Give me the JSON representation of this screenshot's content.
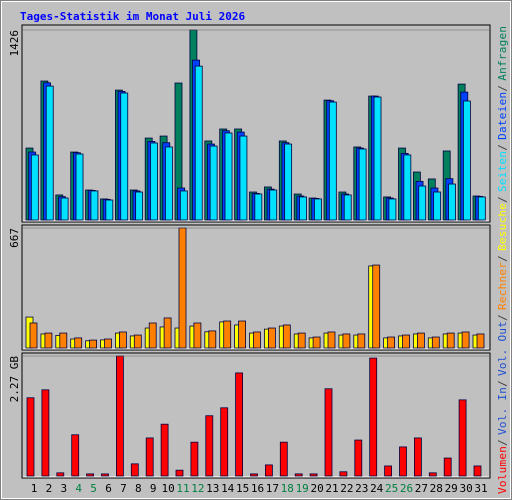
{
  "legend_separator": "/",
  "chart_data": [
    {
      "type": "bar",
      "title": "Tages-Statistik im Monat Juli 2026",
      "ylim": [
        0,
        1426
      ],
      "yticks": [
        1426
      ],
      "series": [
        {
          "name": "Anfragen",
          "color": "#00805c",
          "values": [
            540,
            1043,
            188,
            510,
            225,
            158,
            975,
            225,
            615,
            630,
            1028,
            1426,
            593,
            683,
            683,
            210,
            248,
            593,
            195,
            165,
            900,
            210,
            548,
            930,
            173,
            540,
            360,
            308,
            518,
            1020,
            180
          ]
        },
        {
          "name": "Dateien",
          "color": "#0040ff",
          "values": [
            510,
            1030,
            175,
            505,
            222,
            155,
            965,
            218,
            590,
            580,
            240,
            1200,
            570,
            670,
            660,
            200,
            232,
            580,
            180,
            162,
            895,
            195,
            540,
            930,
            165,
            500,
            290,
            240,
            310,
            960,
            177
          ]
        },
        {
          "name": "Seiten",
          "color": "#00e0ff",
          "values": [
            488,
            1005,
            165,
            495,
            218,
            150,
            953,
            210,
            578,
            548,
            218,
            1155,
            555,
            653,
            630,
            195,
            225,
            570,
            173,
            158,
            885,
            188,
            533,
            923,
            158,
            488,
            255,
            210,
            270,
            893,
            173
          ]
        }
      ]
    },
    {
      "type": "bar",
      "ylim": [
        0,
        667
      ],
      "yticks": [
        667
      ],
      "series": [
        {
          "name": "Besuche",
          "color": "#ffff00",
          "values": [
            172,
            78,
            70,
            50,
            40,
            45,
            83,
            67,
            111,
            117,
            111,
            122,
            90,
            145,
            128,
            83,
            105,
            122,
            78,
            56,
            83,
            72,
            72,
            456,
            56,
            67,
            78,
            56,
            78,
            83,
            72
          ]
        },
        {
          "name": "Rechner",
          "color": "#ff8000",
          "values": [
            139,
            83,
            83,
            56,
            44,
            50,
            89,
            72,
            139,
            167,
            667,
            139,
            95,
            150,
            150,
            89,
            111,
            128,
            83,
            61,
            89,
            78,
            78,
            461,
            61,
            72,
            83,
            61,
            83,
            89,
            78
          ]
        }
      ]
    },
    {
      "type": "bar",
      "ylim": [
        0,
        2.27
      ],
      "yticks": [
        {
          "value": 2.27,
          "label": "2.27 GB"
        }
      ],
      "categories": [
        "1",
        "2",
        "3",
        "4",
        "5",
        "6",
        "7",
        "8",
        "9",
        "10",
        "11",
        "12",
        "13",
        "14",
        "15",
        "16",
        "17",
        "18",
        "19",
        "20",
        "21",
        "22",
        "23",
        "24",
        "25",
        "26",
        "27",
        "28",
        "29",
        "30",
        "31"
      ],
      "category_colors": [
        "#000000",
        "#000000",
        "#000000",
        "#008040",
        "#008040",
        "#000000",
        "#000000",
        "#000000",
        "#000000",
        "#000000",
        "#008040",
        "#008040",
        "#000000",
        "#000000",
        "#000000",
        "#000000",
        "#000000",
        "#008040",
        "#008040",
        "#000000",
        "#000000",
        "#000000",
        "#000000",
        "#000000",
        "#008040",
        "#008040",
        "#000000",
        "#000000",
        "#000000",
        "#000000",
        "#000000"
      ],
      "series": [
        {
          "name": "Volumen",
          "color": "#ff0000",
          "values": [
            1.48,
            1.63,
            0.06,
            0.78,
            0.04,
            0.04,
            2.27,
            0.23,
            0.72,
            0.98,
            0.11,
            0.64,
            1.14,
            1.29,
            1.95,
            0.04,
            0.21,
            0.64,
            0.04,
            0.04,
            1.65,
            0.08,
            0.68,
            2.23,
            0.19,
            0.55,
            0.72,
            0.06,
            0.34,
            1.44,
            0.19
          ]
        }
      ],
      "extra_legend": [
        {
          "name": "Vol. In",
          "color": "#2050d0"
        },
        {
          "name": "Vol. Out",
          "color": "#2050d0"
        }
      ]
    }
  ]
}
